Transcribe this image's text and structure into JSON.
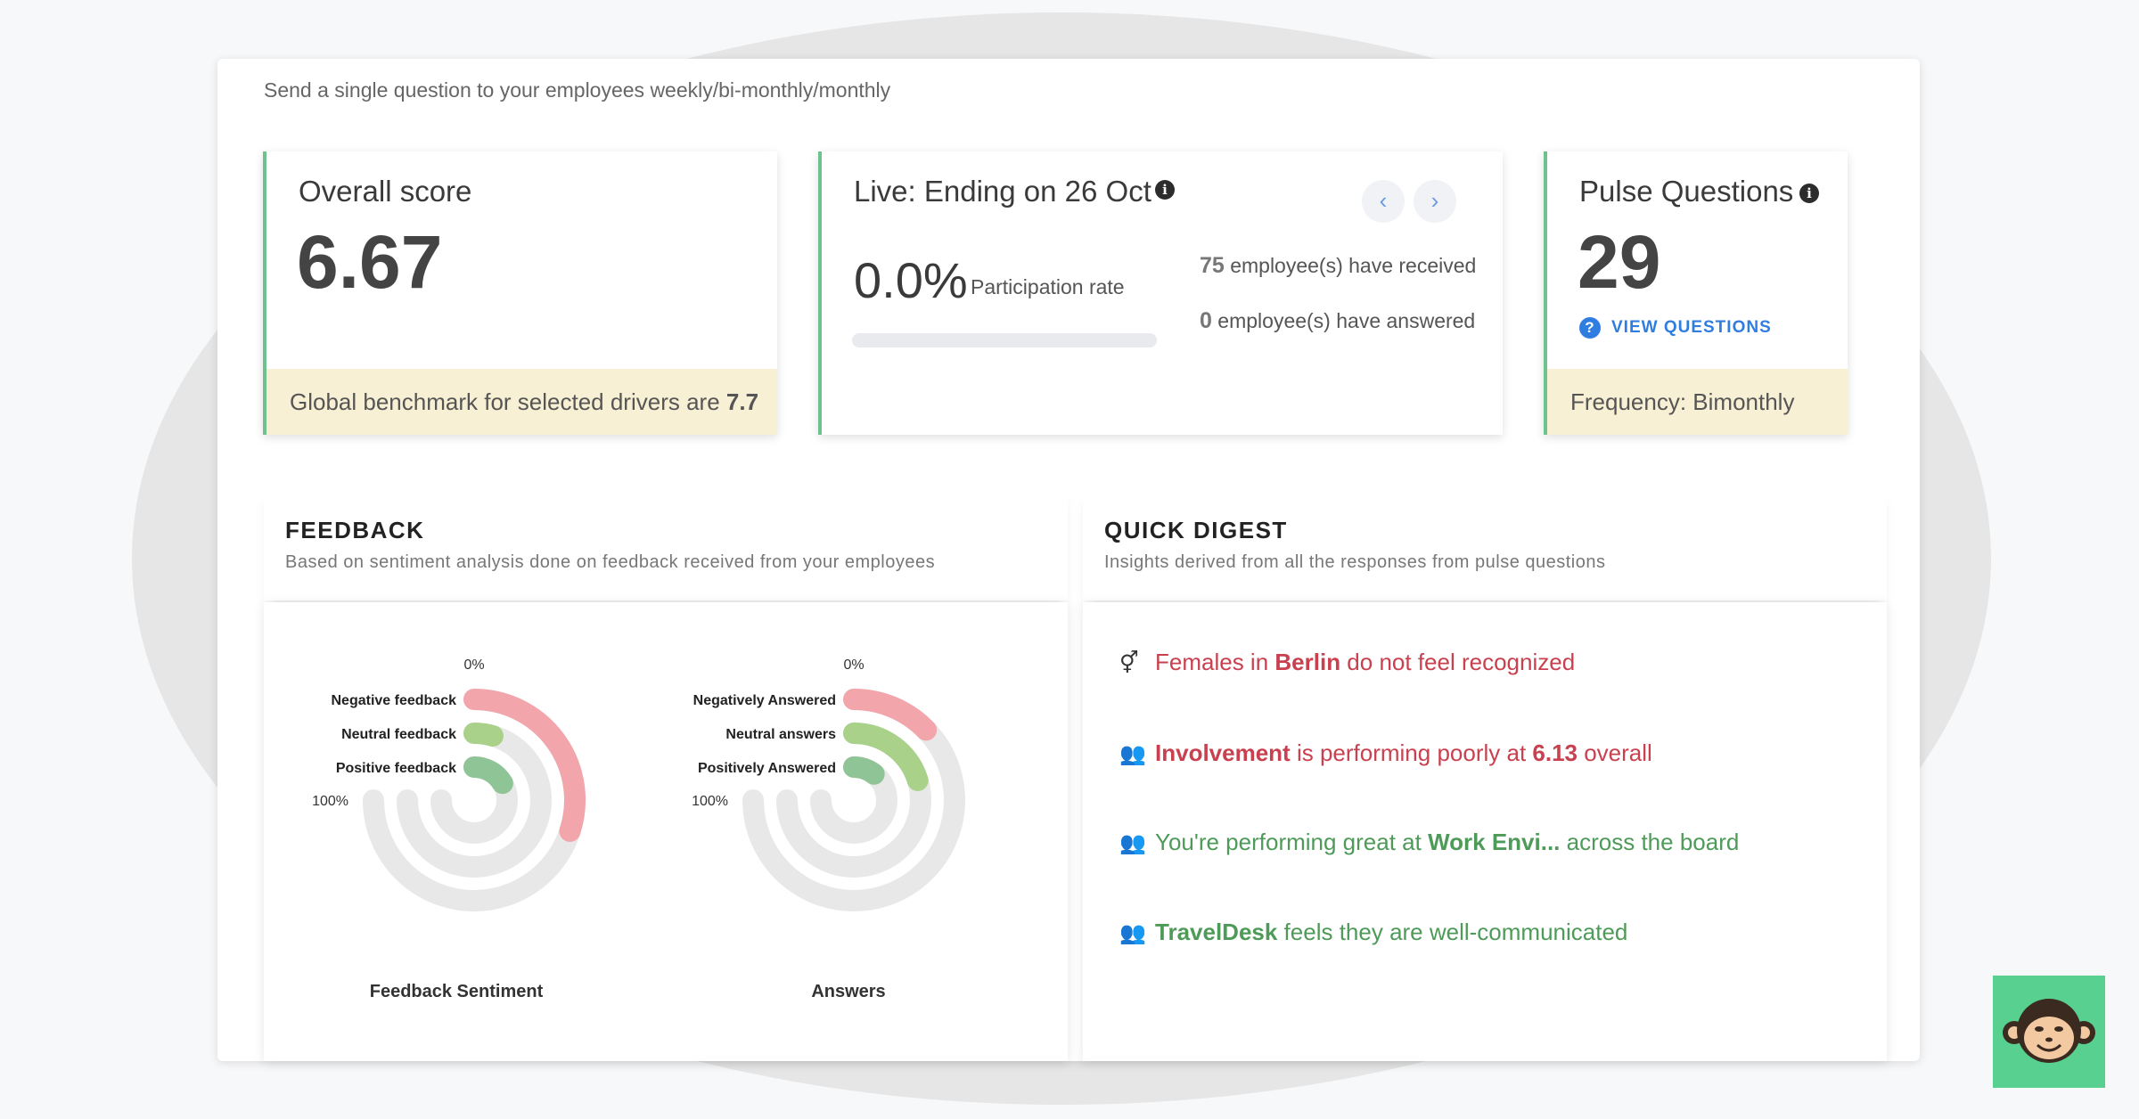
{
  "header": {
    "subtitle": "Send a single question to your employees weekly/bi-monthly/monthly"
  },
  "overall": {
    "title": "Overall score",
    "score": "6.67",
    "benchmark_prefix": "Global benchmark for selected drivers are ",
    "benchmark_value": "7.7"
  },
  "live": {
    "title": "Live: Ending on 26 Oct",
    "info_icon": "i",
    "prev_icon": "‹",
    "next_icon": "›",
    "participation_value": "0.0%",
    "participation_label": "Participation rate",
    "participation_fraction": 0.0,
    "received_count": "75",
    "received_label": "employee(s) have received",
    "answered_count": "0",
    "answered_label": "employee(s) have answered"
  },
  "pulse": {
    "title": "Pulse Questions",
    "info_icon": "i",
    "count": "29",
    "view_icon": "?",
    "view_label": "VIEW QUESTIONS",
    "frequency": "Frequency: Bimonthly"
  },
  "feedback": {
    "title": "FEEDBACK",
    "description": "Based on sentiment analysis done on feedback received from your employees"
  },
  "digest": {
    "title": "QUICK DIGEST",
    "description": "Insights derived from all the responses from pulse questions",
    "items": [
      {
        "icon": "gender-icon",
        "glyph": "⚥",
        "tone": "neg",
        "pre": "Females in ",
        "bold": "Berlin",
        "post": " do not feel recognized",
        "bold2": "",
        "post2": ""
      },
      {
        "icon": "group-icon",
        "glyph": "👥",
        "tone": "neg",
        "pre": "",
        "bold": "Involvement",
        "post": " is performing poorly at ",
        "bold2": "6.13",
        "post2": " overall"
      },
      {
        "icon": "group-icon",
        "glyph": "👥",
        "tone": "pos",
        "pre": "You're performing great at ",
        "bold": "Work Envi...",
        "post": " across the board",
        "bold2": "",
        "post2": ""
      },
      {
        "icon": "group-icon",
        "glyph": "👥",
        "tone": "pos",
        "pre": "",
        "bold": "TravelDesk",
        "post": " feels they are well-communicated",
        "bold2": "",
        "post2": ""
      }
    ]
  },
  "colors": {
    "accent_green": "#6cc38e",
    "negative": "#f2a5ab",
    "neutral": "#a9d18a",
    "positive": "#8fc496",
    "track": "#e8e8e8",
    "link_blue": "#2f7de1"
  },
  "chart_data": [
    {
      "type": "radial-bar",
      "title": "Feedback Sentiment",
      "tick_start": "0%",
      "tick_end": "100%",
      "series": [
        {
          "name": "Negative feedback",
          "value": 0.4
        },
        {
          "name": "Neutral feedback",
          "value": 0.06
        },
        {
          "name": "Positive feedback",
          "value": 0.22
        }
      ]
    },
    {
      "type": "radial-bar",
      "title": "Answers",
      "tick_start": "0%",
      "tick_end": "100%",
      "series": [
        {
          "name": "Negatively Answered",
          "value": 0.17
        },
        {
          "name": "Neutral answers",
          "value": 0.27
        },
        {
          "name": "Positively Answered",
          "value": 0.14
        }
      ]
    }
  ]
}
